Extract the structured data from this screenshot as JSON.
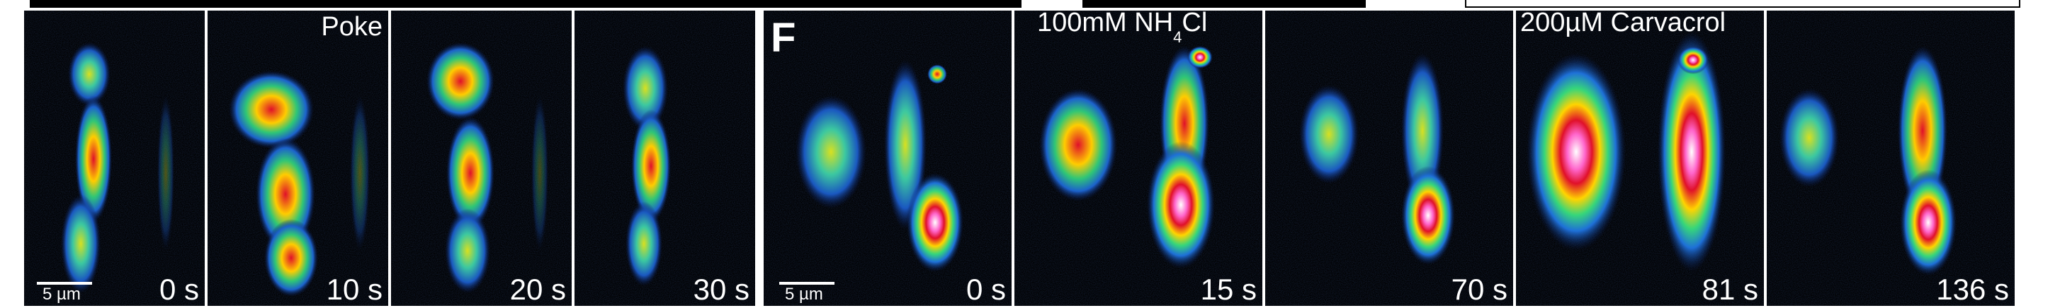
{
  "left_group": {
    "panels": [
      {
        "time": "0 s",
        "scale_bar": "5 µm"
      },
      {
        "time": "10 s",
        "label": "Poke"
      },
      {
        "time": "20 s"
      },
      {
        "time": "30 s"
      }
    ]
  },
  "right_group": {
    "panel_letter": "F",
    "panels": [
      {
        "time": "0 s",
        "scale_bar": "5 µm"
      },
      {
        "time": "15 s",
        "label": "100mM NH",
        "label_sub": "4",
        "label_tail": "Cl"
      },
      {
        "time": "70 s"
      },
      {
        "time": "81 s",
        "label": "200µM Carvacrol"
      },
      {
        "time": "136 s"
      }
    ]
  }
}
